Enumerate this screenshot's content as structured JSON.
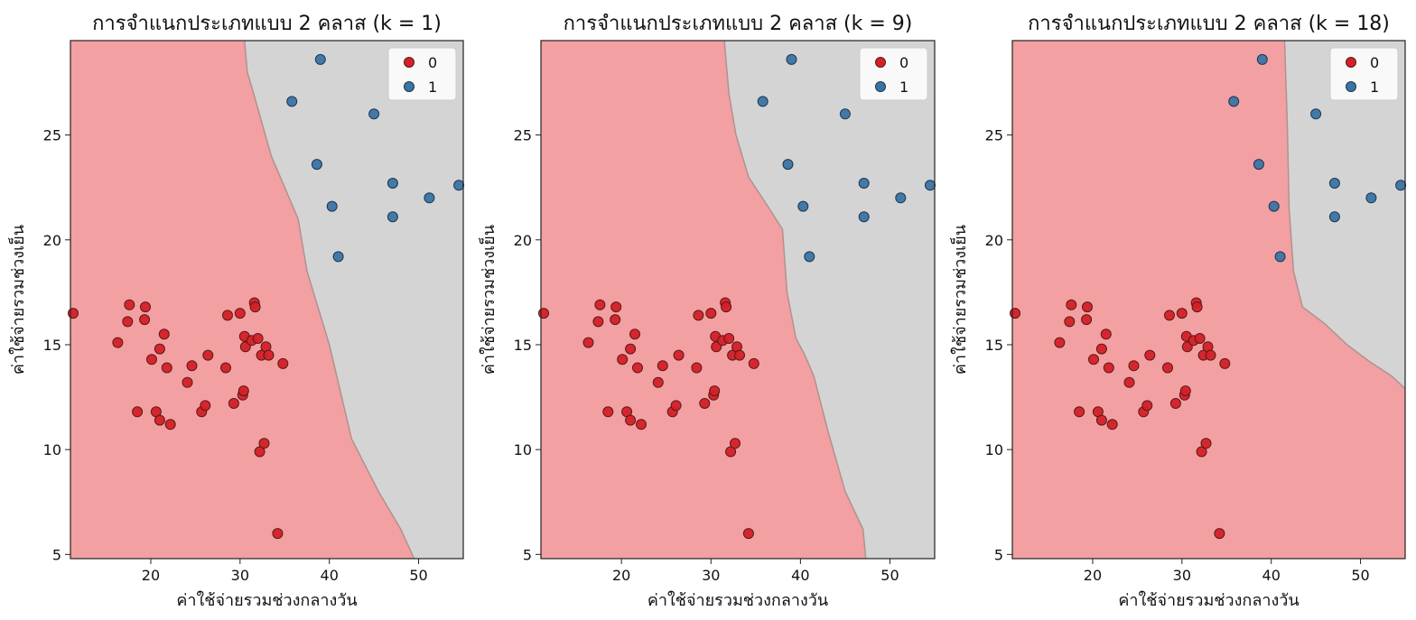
{
  "chart_data": [
    {
      "type": "scatter",
      "title": "การจำแนกประเภทแบบ 2 คลาส (k = 1)",
      "xlabel": "ค่าใช้จ่ายรวมช่วงกลางวัน",
      "ylabel": "ค่าใช้จ่ายรวมช่วงเย็น",
      "xlim": [
        11,
        55
      ],
      "ylim": [
        4.8,
        29.5
      ],
      "xticks": [
        "20",
        "30",
        "40",
        "50"
      ],
      "yticks": [
        "5",
        "10",
        "15",
        "20",
        "25"
      ],
      "legend": {
        "position": "top-right",
        "entries": [
          "0",
          "1"
        ]
      },
      "grid": false,
      "boundary": [
        [
          30.5,
          29.5
        ],
        [
          30.8,
          28
        ],
        [
          31.5,
          27
        ],
        [
          33.5,
          24
        ],
        [
          35.5,
          22
        ],
        [
          36.5,
          21
        ],
        [
          37.5,
          18.5
        ],
        [
          40,
          15
        ],
        [
          42.5,
          10.5
        ],
        [
          45.5,
          8
        ],
        [
          48,
          6.2
        ],
        [
          49.5,
          4.8
        ]
      ]
    },
    {
      "type": "scatter",
      "title": "การจำแนกประเภทแบบ 2 คลาส (k = 9)",
      "xlabel": "ค่าใช้จ่ายรวมช่วงกลางวัน",
      "ylabel": "ค่าใช้จ่ายรวมช่วงเย็น",
      "xlim": [
        11,
        55
      ],
      "ylim": [
        4.8,
        29.5
      ],
      "xticks": [
        "20",
        "30",
        "40",
        "50"
      ],
      "yticks": [
        "5",
        "10",
        "15",
        "20",
        "25"
      ],
      "legend": {
        "position": "top-right",
        "entries": [
          "0",
          "1"
        ]
      },
      "grid": false,
      "boundary": [
        [
          31.5,
          29.5
        ],
        [
          32,
          27
        ],
        [
          32.8,
          25
        ],
        [
          34.2,
          23
        ],
        [
          36.5,
          21.5
        ],
        [
          38,
          20.5
        ],
        [
          38.5,
          17.5
        ],
        [
          39.5,
          15.3
        ],
        [
          40.5,
          14.5
        ],
        [
          41.5,
          13.5
        ],
        [
          43,
          11
        ],
        [
          45,
          8
        ],
        [
          47,
          6.2
        ],
        [
          47.3,
          4.8
        ]
      ]
    },
    {
      "type": "scatter",
      "title": "การจำแนกประเภทแบบ 2 คลาส (k = 18)",
      "xlabel": "ค่าใช้จ่ายรวมช่วงกลางวัน",
      "ylabel": "ค่าใช้จ่ายรวมช่วงเย็น",
      "xlim": [
        11,
        55
      ],
      "ylim": [
        4.8,
        29.5
      ],
      "xticks": [
        "20",
        "30",
        "40",
        "50"
      ],
      "yticks": [
        "5",
        "10",
        "15",
        "20",
        "25"
      ],
      "legend": {
        "position": "top-right",
        "entries": [
          "0",
          "1"
        ]
      },
      "grid": false,
      "boundary": [
        [
          41.5,
          29.5
        ],
        [
          41.8,
          25.5
        ],
        [
          42,
          21.5
        ],
        [
          42.5,
          18.5
        ],
        [
          43.5,
          16.8
        ],
        [
          46,
          16
        ],
        [
          48.5,
          15
        ],
        [
          51,
          14.2
        ],
        [
          53.5,
          13.5
        ],
        [
          55,
          12.9
        ]
      ]
    }
  ],
  "shared": {
    "colors": {
      "class0_region": "#f2a0a2",
      "class1_region": "#d4d4d4",
      "class0_point": "#d42027",
      "class1_point": "#3b74a4",
      "boundary": "#b0928f"
    },
    "points": {
      "class0": [
        [
          11.3,
          16.5
        ],
        [
          16.3,
          15.1
        ],
        [
          17.4,
          16.1
        ],
        [
          17.6,
          16.9
        ],
        [
          18.5,
          11.8
        ],
        [
          19.3,
          16.2
        ],
        [
          19.4,
          16.8
        ],
        [
          20.1,
          14.3
        ],
        [
          20.6,
          11.8
        ],
        [
          21.0,
          14.8
        ],
        [
          21.0,
          11.4
        ],
        [
          21.5,
          15.5
        ],
        [
          21.8,
          13.9
        ],
        [
          22.2,
          11.2
        ],
        [
          24.1,
          13.2
        ],
        [
          24.6,
          14.0
        ],
        [
          25.7,
          11.8
        ],
        [
          26.1,
          12.1
        ],
        [
          26.4,
          14.5
        ],
        [
          28.4,
          13.9
        ],
        [
          28.6,
          16.4
        ],
        [
          29.3,
          12.2
        ],
        [
          30.0,
          16.5
        ],
        [
          30.3,
          12.6
        ],
        [
          30.4,
          12.8
        ],
        [
          30.5,
          15.4
        ],
        [
          30.6,
          14.9
        ],
        [
          31.3,
          15.2
        ],
        [
          31.6,
          17.0
        ],
        [
          31.7,
          16.8
        ],
        [
          32.0,
          15.3
        ],
        [
          32.2,
          9.9
        ],
        [
          32.4,
          14.5
        ],
        [
          32.7,
          10.3
        ],
        [
          32.9,
          14.9
        ],
        [
          33.2,
          14.5
        ],
        [
          34.2,
          6.0
        ],
        [
          34.8,
          14.1
        ]
      ],
      "class1": [
        [
          35.8,
          26.6
        ],
        [
          38.6,
          23.6
        ],
        [
          39.0,
          28.6
        ],
        [
          40.3,
          21.6
        ],
        [
          41.0,
          19.2
        ],
        [
          45.0,
          26.0
        ],
        [
          47.1,
          22.7
        ],
        [
          47.1,
          21.1
        ],
        [
          51.2,
          22.0
        ],
        [
          54.5,
          22.6
        ]
      ]
    }
  }
}
